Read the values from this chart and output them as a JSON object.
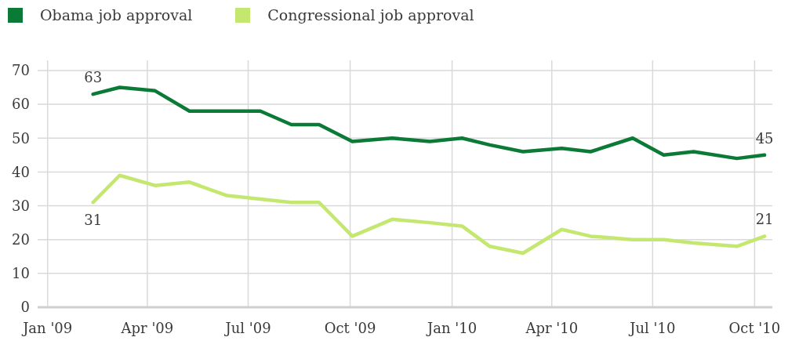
{
  "chart_data": {
    "type": "line",
    "x": [
      "2009-02-11",
      "2009-03-07",
      "2009-04-08",
      "2009-05-09",
      "2009-06-12",
      "2009-07-12",
      "2009-08-09",
      "2009-09-03",
      "2009-10-03",
      "2009-11-08",
      "2009-12-12",
      "2010-01-10",
      "2010-02-04",
      "2010-03-06",
      "2010-04-10",
      "2010-05-06",
      "2010-06-13",
      "2010-07-11",
      "2010-08-07",
      "2010-09-15",
      "2010-10-10"
    ],
    "series": [
      {
        "name": "Obama job approval",
        "color": "#0a7a36",
        "values": [
          63,
          65,
          64,
          58,
          58,
          58,
          54,
          54,
          49,
          50,
          49,
          50,
          48,
          46,
          47,
          46,
          50,
          45,
          46,
          44,
          45
        ],
        "value_labels": [
          "63",
          null,
          null,
          null,
          null,
          null,
          null,
          null,
          null,
          null,
          null,
          null,
          null,
          null,
          null,
          null,
          null,
          null,
          null,
          null,
          "45"
        ]
      },
      {
        "name": "Congressional job approval",
        "color": "#c4e770",
        "values": [
          31,
          39,
          36,
          37,
          33,
          32,
          31,
          31,
          21,
          26,
          25,
          24,
          18,
          16,
          23,
          21,
          20,
          20,
          19,
          18,
          21
        ],
        "value_labels": [
          "31",
          null,
          null,
          null,
          null,
          null,
          null,
          null,
          null,
          null,
          null,
          null,
          null,
          null,
          null,
          null,
          null,
          null,
          null,
          null,
          "21"
        ]
      }
    ],
    "xlim": [
      "2008-12-23",
      "2010-10-17"
    ],
    "xticks": [
      {
        "value": "2009-01-01",
        "label": "Jan '09"
      },
      {
        "value": "2009-04-01",
        "label": "Apr '09"
      },
      {
        "value": "2009-07-01",
        "label": "Jul '09"
      },
      {
        "value": "2009-10-01",
        "label": "Oct '09"
      },
      {
        "value": "2010-01-01",
        "label": "Jan '10"
      },
      {
        "value": "2010-04-01",
        "label": "Apr '10"
      },
      {
        "value": "2010-07-01",
        "label": "Jul '10"
      },
      {
        "value": "2010-10-01",
        "label": "Oct '10"
      }
    ],
    "ylim": [
      0,
      73
    ],
    "yticks": [
      0,
      10,
      20,
      30,
      40,
      50,
      60,
      70
    ],
    "grid": true,
    "legend": "top left",
    "line_style": "solid"
  }
}
